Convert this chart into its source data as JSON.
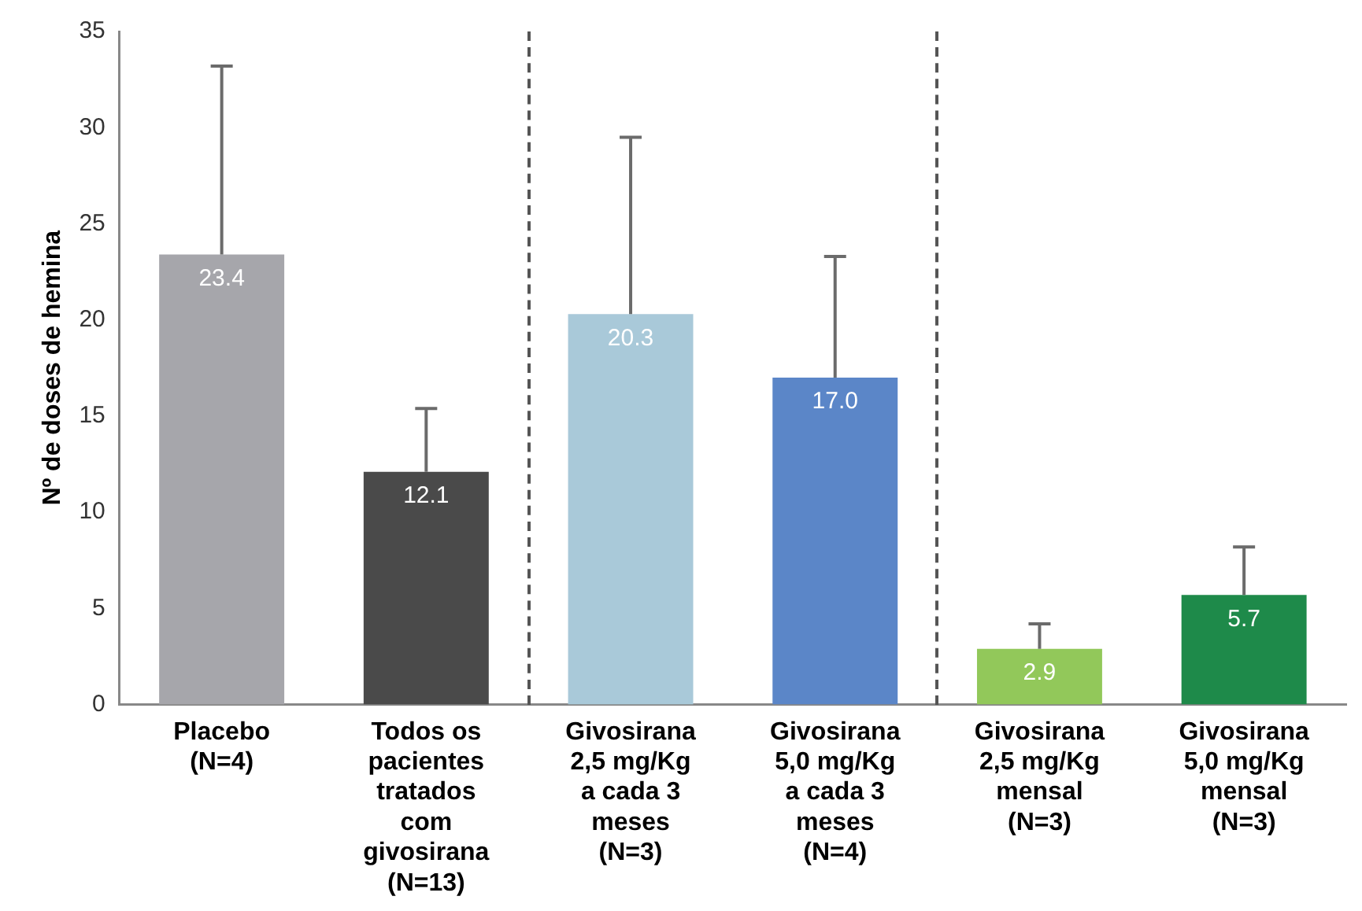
{
  "chart_data": {
    "type": "bar",
    "ylabel": "Nº de doses de hemina",
    "categories": [
      "Placebo\n(N=4)",
      "Todos os\npacientes\ntratados\ncom\ngivosirana\n(N=13)",
      "Givosirana\n2,5 mg/Kg\na cada 3\nmeses\n(N=3)",
      "Givosirana\n5,0 mg/Kg\na cada 3\nmeses\n(N=4)",
      "Givosirana\n2,5 mg/Kg\nmensal\n(N=3)",
      "Givosirana\n5,0 mg/Kg\nmensal\n(N=3)"
    ],
    "values": [
      23.4,
      12.1,
      20.3,
      17.0,
      2.9,
      5.7
    ],
    "value_labels": [
      "23.4",
      "12.1",
      "20.3",
      "17.0",
      "2.9",
      "5.7"
    ],
    "errors": [
      [
        23.4,
        33.2
      ],
      [
        12.1,
        15.4
      ],
      [
        20.3,
        29.5
      ],
      [
        17.0,
        23.3
      ],
      [
        2.9,
        4.2
      ],
      [
        5.7,
        8.2
      ]
    ],
    "colors": [
      "#a6a6ab",
      "#4a4a4a",
      "#a9c9d9",
      "#5b86c8",
      "#92c85a",
      "#1e8a4a"
    ],
    "ylim": [
      0,
      35
    ],
    "yticks": [
      0,
      5,
      10,
      15,
      20,
      25,
      30,
      35
    ],
    "grid": false,
    "legend": false
  }
}
